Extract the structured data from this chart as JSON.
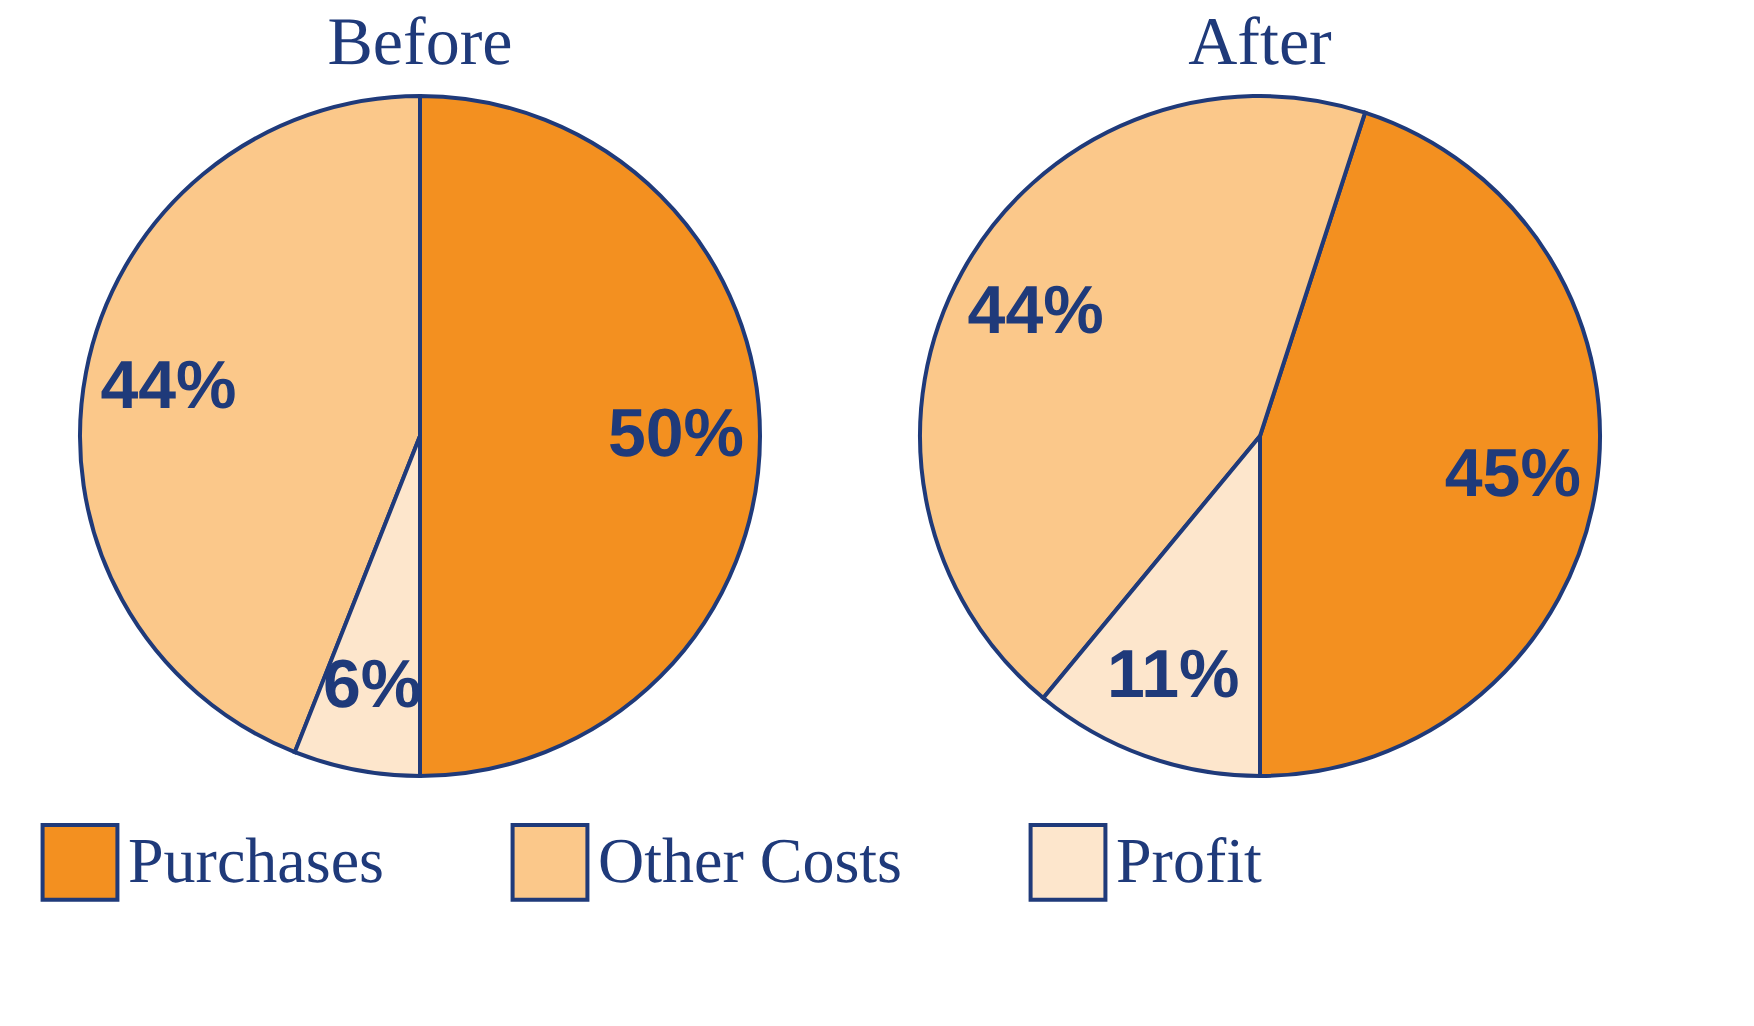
{
  "chart_data": [
    {
      "type": "pie",
      "title": "Before",
      "categories": [
        "Purchases",
        "Other Costs",
        "Profit"
      ],
      "values": [
        50,
        44,
        6
      ],
      "colors": [
        "#f39020",
        "#fbc88a",
        "#fde6cc"
      ],
      "value_labels": [
        "50%",
        "44%",
        "6%"
      ],
      "legend": "bottom"
    },
    {
      "type": "pie",
      "title": "After",
      "categories": [
        null,
        null,
        null
      ],
      "values": [
        45,
        44,
        11
      ],
      "colors": [
        "#f39020",
        "#fbc88a",
        "#fde6cc"
      ],
      "value_labels": [
        "45%",
        "44%",
        "11%"
      ]
    }
  ]
}
